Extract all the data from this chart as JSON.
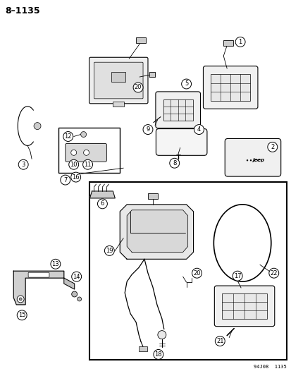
{
  "title": "8–1135",
  "footer": "94J08  1135",
  "bg_color": "#ffffff",
  "figsize": [
    4.14,
    5.33
  ],
  "dpi": 100
}
